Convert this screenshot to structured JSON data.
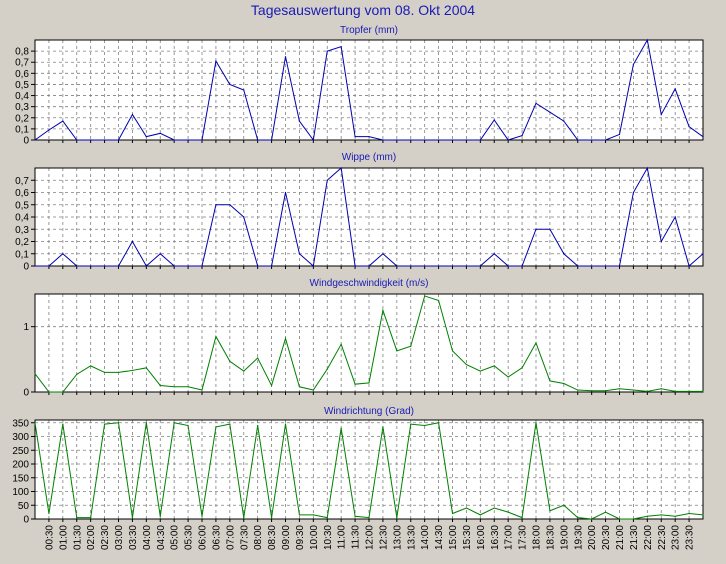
{
  "page": {
    "title": "Tagesauswertung vom 08. Okt 2004"
  },
  "x_tick_labels": [
    "00:30",
    "01:00",
    "01:30",
    "02:00",
    "02:30",
    "03:00",
    "03:30",
    "04:00",
    "04:30",
    "05:00",
    "05:30",
    "06:00",
    "06:30",
    "07:00",
    "07:30",
    "08:00",
    "08:30",
    "09:00",
    "09:30",
    "10:00",
    "10:30",
    "11:00",
    "11:30",
    "12:00",
    "12:30",
    "13:00",
    "13:30",
    "14:00",
    "14:30",
    "15:00",
    "15:30",
    "16:00",
    "16:30",
    "17:00",
    "17:30",
    "18:00",
    "18:30",
    "19:00",
    "19:30",
    "20:00",
    "20:30",
    "21:00",
    "21:30",
    "22:00",
    "22:30",
    "23:00",
    "23:30"
  ],
  "colors": {
    "background": "#d4d0c8",
    "plot_background": "#ffffff",
    "blue_series": "#0000b0",
    "green_series": "#008000",
    "title_text": "#1a1ab4",
    "grid": "#808080"
  },
  "chart_data": [
    {
      "type": "line",
      "title": "Tropfer (mm)",
      "color": "#0000b0",
      "ylim": [
        0,
        0.9
      ],
      "yticks": [
        0,
        0.1,
        0.2,
        0.3,
        0.4,
        0.5,
        0.6,
        0.7,
        0.8
      ],
      "ytick_labels": [
        "0",
        "0,1",
        "0,2",
        "0,3",
        "0,4",
        "0,5",
        "0,6",
        "0,7",
        "0,8"
      ],
      "grid": true,
      "values": [
        0,
        0.09,
        0.17,
        0,
        0,
        0,
        0,
        0.23,
        0.03,
        0.06,
        0,
        0,
        0,
        0.71,
        0.5,
        0.45,
        0,
        0,
        0.75,
        0.17,
        0,
        0.8,
        0.84,
        0.03,
        0.03,
        0,
        0,
        0,
        0,
        0,
        0,
        0,
        0,
        0.18,
        0,
        0.04,
        0.33,
        0.25,
        0.17,
        0,
        0,
        0,
        0.05,
        0.68,
        0.9,
        0.23,
        0.46,
        0.12,
        0.03
      ]
    },
    {
      "type": "line",
      "title": "Wippe (mm)",
      "color": "#0000b0",
      "ylim": [
        0,
        0.8
      ],
      "yticks": [
        0,
        0.1,
        0.2,
        0.3,
        0.4,
        0.5,
        0.6,
        0.7
      ],
      "ytick_labels": [
        "0",
        "0,1",
        "0,2",
        "0,3",
        "0,4",
        "0,5",
        "0,6",
        "0,7"
      ],
      "grid": true,
      "values": [
        0,
        0,
        0.1,
        0,
        0,
        0,
        0,
        0.2,
        0,
        0.1,
        0,
        0,
        0,
        0.5,
        0.5,
        0.4,
        0,
        0,
        0.6,
        0.1,
        0,
        0.7,
        0.8,
        0,
        0,
        0.1,
        0,
        0,
        0,
        0,
        0,
        0,
        0,
        0.1,
        0,
        0,
        0.3,
        0.3,
        0.1,
        0,
        0,
        0,
        0,
        0.6,
        0.8,
        0.2,
        0.4,
        0,
        0.1
      ]
    },
    {
      "type": "line",
      "title": "Windgeschwindigkeit (m/s)",
      "color": "#008000",
      "ylim": [
        0,
        1.5
      ],
      "yticks": [
        0,
        1
      ],
      "ytick_labels": [
        "0",
        "1"
      ],
      "grid": true,
      "values": [
        0.28,
        0,
        0,
        0.27,
        0.4,
        0.3,
        0.3,
        0.33,
        0.37,
        0.1,
        0.08,
        0.08,
        0.03,
        0.85,
        0.47,
        0.32,
        0.52,
        0.1,
        0.82,
        0.08,
        0.03,
        0.35,
        0.73,
        0.12,
        0.14,
        1.25,
        0.63,
        0.7,
        1.47,
        1.4,
        0.63,
        0.42,
        0.32,
        0.4,
        0.23,
        0.37,
        0.75,
        0.17,
        0.13,
        0.03,
        0.02,
        0.02,
        0.05,
        0.03,
        0.01,
        0.05,
        0.01,
        0.01,
        0.01
      ]
    },
    {
      "type": "line",
      "title": "Windrichtung (Grad)",
      "color": "#008000",
      "ylim": [
        0,
        360
      ],
      "yticks": [
        0,
        50,
        100,
        150,
        200,
        250,
        300,
        350
      ],
      "ytick_labels": [
        "0",
        "50",
        "100",
        "150",
        "200",
        "250",
        "300",
        "350"
      ],
      "grid": true,
      "values": [
        350,
        20,
        345,
        5,
        5,
        345,
        350,
        5,
        350,
        10,
        350,
        340,
        10,
        335,
        345,
        5,
        340,
        5,
        345,
        15,
        15,
        5,
        330,
        10,
        5,
        335,
        5,
        345,
        340,
        350,
        20,
        40,
        15,
        40,
        25,
        5,
        350,
        30,
        50,
        5,
        0,
        25,
        0,
        0,
        10,
        15,
        10,
        20,
        15
      ]
    }
  ]
}
